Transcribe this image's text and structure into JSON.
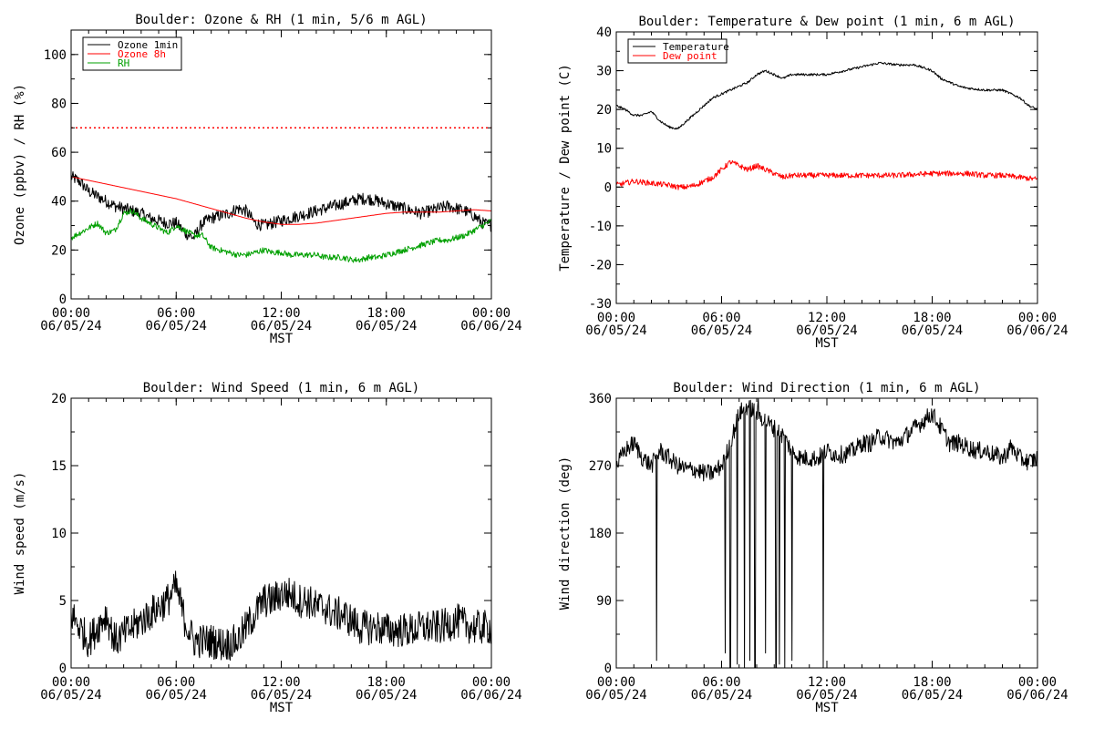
{
  "chart_data": [
    {
      "type": "line",
      "title": "Boulder: Ozone & RH (1 min, 5/6 m AGL)",
      "ylabel": "Ozone (ppbv) / RH (%)",
      "xlabel": "MST",
      "xlim": [
        0,
        24
      ],
      "ylim": [
        0,
        110
      ],
      "yticks": [
        0,
        20,
        40,
        60,
        80,
        100
      ],
      "xticks": [
        {
          "t": "00:00",
          "d": "06/05/24"
        },
        {
          "t": "06:00",
          "d": "06/05/24"
        },
        {
          "t": "12:00",
          "d": "06/05/24"
        },
        {
          "t": "18:00",
          "d": "06/05/24"
        },
        {
          "t": "00:00",
          "d": "06/06/24"
        }
      ],
      "legend": {
        "placement": "top-left",
        "entries": [
          {
            "label": "Ozone 1min",
            "color": "#000000"
          },
          {
            "label": "Ozone 8h",
            "color": "#ff0000"
          },
          {
            "label": "RH",
            "color": "#00a000"
          }
        ]
      },
      "reference_line": {
        "y": 70,
        "color": "#ff0000",
        "style": "dotted"
      },
      "series": [
        {
          "color": "#000000",
          "noise": 2.5,
          "x": [
            0,
            0.5,
            1,
            1.5,
            2,
            2.5,
            3,
            3.5,
            4,
            4.5,
            5,
            5.5,
            6,
            6.5,
            7,
            7.5,
            8,
            8.5,
            9,
            9.5,
            10,
            10.5,
            11,
            11.5,
            12,
            12.5,
            13,
            13.5,
            14,
            14.5,
            15,
            15.5,
            16,
            16.5,
            17,
            17.5,
            18,
            18.5,
            19,
            19.5,
            20,
            20.5,
            21,
            21.5,
            22,
            22.5,
            23,
            23.5,
            24
          ],
          "values": [
            50,
            48,
            44,
            42,
            40,
            38,
            37,
            36,
            35,
            33,
            32,
            31,
            31,
            27,
            25,
            31,
            33,
            34,
            35,
            37,
            36,
            31,
            30,
            31,
            32,
            33,
            34,
            35,
            36,
            37,
            38,
            39,
            40,
            41,
            41,
            40,
            39,
            38,
            37,
            36,
            35,
            36,
            37,
            38,
            37,
            36,
            34,
            31,
            30
          ]
        },
        {
          "color": "#ff0000",
          "noise": 0,
          "x": [
            0,
            1,
            2,
            3,
            4,
            5,
            6,
            7,
            8,
            9,
            10,
            11,
            12,
            13,
            14,
            15,
            16,
            17,
            18,
            19,
            20,
            21,
            22,
            23,
            24
          ],
          "values": [
            50,
            48.5,
            47,
            45.5,
            44,
            42.5,
            41,
            39,
            37,
            35,
            33,
            31.5,
            30.5,
            30.5,
            31,
            32,
            33,
            34,
            35,
            35.5,
            35.5,
            35.5,
            36,
            36.5,
            36
          ]
        },
        {
          "color": "#00a000",
          "noise": 1.2,
          "x": [
            0,
            0.5,
            1,
            1.5,
            2,
            2.5,
            3,
            3.5,
            4,
            4.5,
            5,
            5.5,
            6,
            6.5,
            7,
            7.5,
            8,
            8.5,
            9,
            9.5,
            10,
            10.5,
            11,
            11.5,
            12,
            12.5,
            13,
            13.5,
            14,
            14.5,
            15,
            15.5,
            16,
            16.5,
            17,
            17.5,
            18,
            18.5,
            19,
            19.5,
            20,
            20.5,
            21,
            21.5,
            22,
            22.5,
            23,
            23.5,
            24
          ],
          "values": [
            25,
            27,
            29,
            31,
            27,
            28,
            35,
            36,
            33,
            31,
            29,
            27,
            30,
            28,
            26,
            26,
            21,
            20,
            19,
            18,
            18,
            19,
            20,
            19,
            19,
            18,
            18,
            18,
            18,
            17,
            17,
            17,
            16,
            16,
            17,
            17,
            18,
            19,
            20,
            21,
            22,
            23,
            24,
            24,
            25,
            26,
            28,
            30,
            32
          ]
        }
      ]
    },
    {
      "type": "line",
      "title": "Boulder: Temperature & Dew point (1 min, 6 m AGL)",
      "ylabel": "Temperature / Dew point (C)",
      "xlabel": "MST",
      "xlim": [
        0,
        24
      ],
      "ylim": [
        -30,
        40
      ],
      "yticks": [
        -30,
        -20,
        -10,
        0,
        10,
        20,
        30,
        40
      ],
      "xticks": [
        {
          "t": "00:00",
          "d": "06/05/24"
        },
        {
          "t": "06:00",
          "d": "06/05/24"
        },
        {
          "t": "12:00",
          "d": "06/05/24"
        },
        {
          "t": "18:00",
          "d": "06/05/24"
        },
        {
          "t": "00:00",
          "d": "06/06/24"
        }
      ],
      "legend": {
        "placement": "top-left",
        "entries": [
          {
            "label": "Temperature",
            "color": "#000000"
          },
          {
            "label": "Dew point",
            "color": "#ff0000"
          }
        ]
      },
      "series": [
        {
          "color": "#000000",
          "noise": 0.3,
          "x": [
            0,
            0.5,
            1,
            1.5,
            2,
            2.5,
            3,
            3.5,
            4,
            4.5,
            5,
            5.5,
            6,
            6.5,
            7,
            7.5,
            8,
            8.5,
            9,
            9.5,
            10,
            11,
            12,
            13,
            14,
            14.5,
            15,
            16,
            17,
            18,
            18.5,
            19,
            19.5,
            20,
            21,
            22,
            23,
            23.5,
            24
          ],
          "values": [
            21,
            20,
            18.5,
            18.5,
            19.5,
            17,
            15.5,
            15,
            17,
            19,
            21,
            23,
            24,
            25,
            26,
            27,
            29,
            30,
            29,
            28,
            29,
            29,
            29,
            30,
            31,
            31.5,
            32,
            31.5,
            31.5,
            30,
            28,
            27,
            26,
            25.5,
            25,
            25,
            23,
            21,
            20
          ]
        },
        {
          "color": "#ff0000",
          "noise": 0.7,
          "x": [
            0,
            1,
            2,
            3,
            3.5,
            4,
            4.5,
            5,
            5.5,
            6,
            6.5,
            7,
            7.5,
            8,
            8.5,
            9,
            9.5,
            10,
            12,
            14,
            16,
            18,
            20,
            21,
            22,
            23,
            24
          ],
          "values": [
            0.5,
            1.5,
            1,
            0.5,
            0,
            0,
            0.5,
            1.5,
            2.5,
            4.5,
            6.5,
            5.5,
            4.5,
            5.5,
            4.5,
            3.5,
            2.5,
            3,
            3,
            3,
            3,
            3.5,
            3.5,
            3,
            3,
            2.5,
            2
          ]
        }
      ]
    },
    {
      "type": "line",
      "title": "Boulder: Wind Speed (1 min, 6 m AGL)",
      "ylabel": "Wind speed (m/s)",
      "xlabel": "MST",
      "xlim": [
        0,
        24
      ],
      "ylim": [
        0,
        20
      ],
      "yticks": [
        0,
        5,
        10,
        15,
        20
      ],
      "xticks": [
        {
          "t": "00:00",
          "d": "06/05/24"
        },
        {
          "t": "06:00",
          "d": "06/05/24"
        },
        {
          "t": "12:00",
          "d": "06/05/24"
        },
        {
          "t": "18:00",
          "d": "06/05/24"
        },
        {
          "t": "00:00",
          "d": "06/06/24"
        }
      ],
      "series": [
        {
          "color": "#000000",
          "noise": 1.3,
          "x": [
            0,
            0.5,
            1,
            1.5,
            2,
            2.5,
            3,
            3.5,
            4,
            4.5,
            5,
            5.5,
            6,
            6.5,
            7,
            7.5,
            8,
            8.5,
            9,
            9.5,
            10,
            10.5,
            11,
            11.5,
            12,
            12.5,
            13,
            13.5,
            14,
            14.5,
            15,
            15.5,
            16,
            16.5,
            17,
            17.5,
            18,
            18.5,
            19,
            19.5,
            20,
            20.5,
            21,
            21.5,
            22,
            22.5,
            23,
            23.5,
            24
          ],
          "values": [
            4,
            3,
            2,
            3,
            4,
            2,
            2.5,
            3,
            3.5,
            4,
            4.5,
            5,
            6,
            3.5,
            2,
            2,
            2,
            1.8,
            1.8,
            2,
            3,
            4,
            5,
            5,
            5.5,
            5.5,
            5,
            5,
            4.5,
            4.5,
            4,
            4,
            3.5,
            3,
            3,
            3,
            2.8,
            2.8,
            2.8,
            2.8,
            3,
            3,
            3,
            3.2,
            3.5,
            3.2,
            3,
            3,
            3
          ]
        }
      ]
    },
    {
      "type": "line",
      "title": "Boulder: Wind Direction (1 min, 6 m AGL)",
      "ylabel": "Wind direction (deg)",
      "xlabel": "MST",
      "xlim": [
        0,
        24
      ],
      "ylim": [
        0,
        360
      ],
      "yticks": [
        0,
        90,
        180,
        270,
        360
      ],
      "xticks": [
        {
          "t": "00:00",
          "d": "06/05/24"
        },
        {
          "t": "06:00",
          "d": "06/05/24"
        },
        {
          "t": "12:00",
          "d": "06/05/24"
        },
        {
          "t": "18:00",
          "d": "06/05/24"
        },
        {
          "t": "00:00",
          "d": "06/06/24"
        }
      ],
      "series": [
        {
          "color": "#000000",
          "noise": 12,
          "x": [
            0,
            0.5,
            1,
            1.5,
            2,
            2.5,
            3,
            3.5,
            4,
            4.5,
            5,
            5.5,
            6,
            6.5,
            7,
            7.5,
            8,
            8.5,
            9,
            9.5,
            10,
            10.5,
            11,
            11.5,
            12,
            12.5,
            13,
            13.5,
            14,
            14.5,
            15,
            15.5,
            16,
            16.5,
            17,
            17.5,
            18,
            18.5,
            19,
            19.5,
            20,
            20.5,
            21,
            21.5,
            22,
            22.5,
            23,
            23.5,
            24
          ],
          "values": [
            270,
            290,
            300,
            280,
            270,
            290,
            280,
            270,
            265,
            265,
            260,
            260,
            270,
            300,
            340,
            350,
            340,
            330,
            320,
            310,
            290,
            280,
            280,
            280,
            290,
            285,
            285,
            290,
            300,
            300,
            310,
            305,
            300,
            310,
            320,
            330,
            340,
            320,
            300,
            300,
            295,
            290,
            290,
            285,
            280,
            295,
            280,
            275,
            280
          ],
          "spikes": [
            [
              2.3,
              10
            ],
            [
              6.2,
              20
            ],
            [
              6.5,
              0
            ],
            [
              6.9,
              5
            ],
            [
              7.3,
              0
            ],
            [
              7.6,
              10
            ],
            [
              7.9,
              0
            ],
            [
              8.1,
              360
            ],
            [
              8.5,
              20
            ],
            [
              9.1,
              0
            ],
            [
              9.3,
              5
            ],
            [
              9.6,
              0
            ],
            [
              10,
              10
            ],
            [
              11.8,
              0
            ]
          ]
        }
      ]
    }
  ]
}
